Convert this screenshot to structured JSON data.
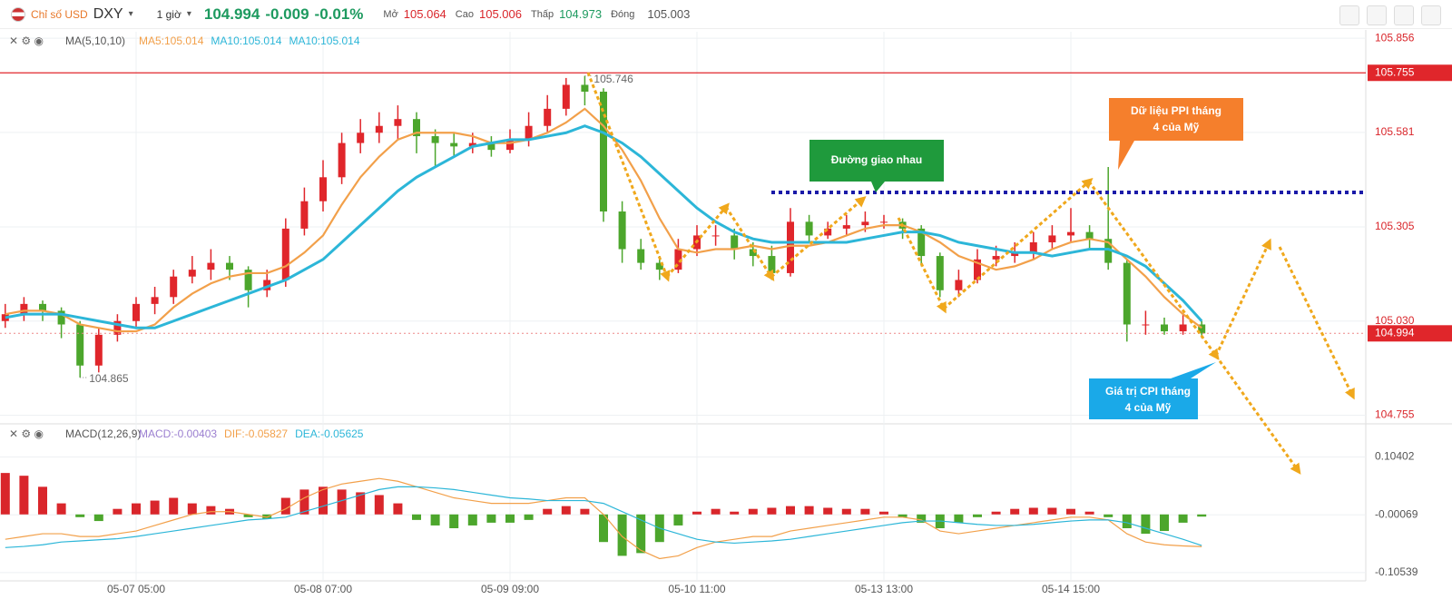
{
  "header": {
    "name": "Chỉ số USD",
    "symbol": "DXY",
    "interval": "1 giờ",
    "price": "104.994",
    "change": "-0.009",
    "change_pct": "-0.01%",
    "open_label": "Mở",
    "open": "105.064",
    "high_label": "Cao",
    "high": "105.006",
    "low_label": "Thấp",
    "low": "104.973",
    "close_label": "Đóng",
    "close": "105.003"
  },
  "chart_data": [
    {
      "type": "candlestick",
      "legend_title": "MA(5,10,10)",
      "legend": [
        "MA5:105.014",
        "MA10:105.014",
        "MA10:105.014"
      ],
      "categories": [
        null,
        null,
        null,
        null,
        null,
        null,
        null,
        "05-07 05:00",
        null,
        null,
        null,
        null,
        null,
        null,
        null,
        null,
        null,
        "05-08 07:00",
        null,
        null,
        null,
        null,
        null,
        null,
        null,
        null,
        null,
        "05-09 09:00",
        null,
        null,
        null,
        null,
        null,
        null,
        null,
        null,
        null,
        "05-10 11:00",
        null,
        null,
        null,
        null,
        null,
        null,
        null,
        null,
        null,
        "05-13 13:00",
        null,
        null,
        null,
        null,
        null,
        null,
        null,
        null,
        null,
        "05-14 15:00",
        null,
        null,
        null,
        null,
        null,
        null,
        null
      ],
      "open": [
        105.03,
        105.05,
        105.08,
        105.06,
        105.02,
        104.9,
        104.99,
        105.03,
        105.08,
        105.1,
        105.16,
        105.18,
        105.2,
        105.18,
        105.12,
        105.15,
        105.3,
        105.38,
        105.45,
        105.55,
        105.58,
        105.6,
        105.62,
        105.57,
        105.55,
        105.54,
        105.55,
        105.53,
        105.56,
        105.6,
        105.65,
        105.72,
        105.7,
        105.35,
        105.24,
        105.2,
        105.18,
        105.24,
        105.28,
        105.28,
        105.24,
        105.22,
        105.17,
        105.32,
        105.28,
        105.3,
        105.31,
        105.32,
        105.32,
        105.3,
        105.22,
        105.12,
        105.15,
        105.21,
        105.22,
        105.23,
        105.26,
        105.28,
        105.29,
        105.27,
        105.2,
        105.02,
        105.02,
        105.0,
        105.02
      ],
      "high": [
        105.08,
        105.1,
        105.09,
        105.07,
        105.03,
        105.01,
        105.05,
        105.1,
        105.13,
        105.18,
        105.22,
        105.24,
        105.22,
        105.19,
        105.18,
        105.33,
        105.42,
        105.5,
        105.58,
        105.62,
        105.64,
        105.66,
        105.64,
        105.59,
        105.58,
        105.58,
        105.57,
        105.59,
        105.64,
        105.69,
        105.74,
        105.746,
        105.71,
        105.38,
        105.27,
        105.22,
        105.27,
        105.31,
        105.31,
        105.3,
        105.26,
        105.25,
        105.36,
        105.34,
        105.32,
        105.34,
        105.35,
        105.34,
        105.33,
        105.31,
        105.23,
        105.18,
        105.24,
        105.25,
        105.26,
        105.29,
        105.31,
        105.36,
        105.31,
        105.48,
        105.21,
        105.06,
        105.04,
        105.05,
        105.03
      ],
      "low": [
        105.01,
        105.03,
        105.03,
        104.98,
        104.865,
        104.88,
        104.97,
        105.01,
        105.05,
        105.08,
        105.14,
        105.15,
        105.15,
        105.07,
        105.1,
        105.13,
        105.28,
        105.35,
        105.43,
        105.52,
        105.55,
        105.56,
        105.52,
        105.48,
        105.51,
        105.52,
        105.51,
        105.52,
        105.54,
        105.58,
        105.63,
        105.66,
        105.32,
        105.2,
        105.18,
        105.15,
        105.17,
        105.22,
        105.25,
        105.21,
        105.19,
        105.15,
        105.16,
        105.26,
        105.27,
        105.28,
        105.29,
        105.3,
        105.27,
        105.19,
        105.1,
        105.1,
        105.14,
        105.19,
        105.2,
        105.21,
        105.24,
        105.26,
        105.24,
        105.18,
        104.97,
        104.99,
        104.99,
        104.99,
        104.98
      ],
      "close": [
        105.05,
        105.08,
        105.06,
        105.02,
        104.9,
        104.99,
        105.03,
        105.08,
        105.1,
        105.16,
        105.18,
        105.2,
        105.18,
        105.12,
        105.15,
        105.3,
        105.38,
        105.45,
        105.55,
        105.58,
        105.6,
        105.62,
        105.57,
        105.55,
        105.54,
        105.55,
        105.53,
        105.56,
        105.6,
        105.65,
        105.72,
        105.7,
        105.35,
        105.24,
        105.2,
        105.18,
        105.24,
        105.28,
        105.28,
        105.24,
        105.22,
        105.17,
        105.32,
        105.28,
        105.3,
        105.31,
        105.32,
        105.32,
        105.3,
        105.22,
        105.12,
        105.15,
        105.21,
        105.22,
        105.23,
        105.26,
        105.28,
        105.29,
        105.27,
        105.2,
        105.02,
        105.02,
        105.0,
        105.02,
        104.994
      ],
      "up_color": "#e0262b",
      "down_color": "#4ca62c",
      "series": [
        {
          "name": "MA5",
          "color": "#f2a04a",
          "values": [
            105.05,
            105.06,
            105.06,
            105.05,
            105.02,
            105.01,
            105.0,
            105.0,
            105.02,
            105.07,
            105.11,
            105.14,
            105.16,
            105.17,
            105.17,
            105.19,
            105.23,
            105.28,
            105.37,
            105.45,
            105.51,
            105.56,
            105.58,
            105.58,
            105.58,
            105.57,
            105.55,
            105.55,
            105.56,
            105.58,
            105.61,
            105.65,
            105.6,
            105.53,
            105.44,
            105.33,
            105.24,
            105.23,
            105.24,
            105.24,
            105.25,
            105.24,
            105.25,
            105.25,
            105.26,
            105.28,
            105.3,
            105.31,
            105.31,
            105.29,
            105.26,
            105.22,
            105.2,
            105.18,
            105.19,
            105.21,
            105.24,
            105.26,
            105.27,
            105.26,
            105.21,
            105.16,
            105.1,
            105.05,
            105.01
          ]
        },
        {
          "name": "MA10",
          "color": "#2cb6d8",
          "values": [
            105.04,
            105.05,
            105.05,
            105.05,
            105.04,
            105.03,
            105.02,
            105.01,
            105.01,
            105.03,
            105.05,
            105.07,
            105.09,
            105.11,
            105.13,
            105.15,
            105.18,
            105.21,
            105.26,
            105.31,
            105.36,
            105.41,
            105.45,
            105.48,
            105.51,
            105.54,
            105.55,
            105.56,
            105.56,
            105.57,
            105.58,
            105.6,
            105.58,
            105.55,
            105.51,
            105.46,
            105.41,
            105.36,
            105.32,
            105.29,
            105.27,
            105.26,
            105.26,
            105.26,
            105.26,
            105.26,
            105.27,
            105.28,
            105.29,
            105.29,
            105.28,
            105.26,
            105.25,
            105.24,
            105.23,
            105.23,
            105.22,
            105.23,
            105.24,
            105.24,
            105.22,
            105.19,
            105.14,
            105.09,
            105.03
          ]
        }
      ],
      "ylim": [
        104.735,
        105.875
      ],
      "yticks": [
        105.856,
        105.581,
        105.305,
        {
          "value": 105.03,
          "label": "105.030"
        },
        104.755
      ],
      "grid": true,
      "max_label": 105.746,
      "min_label": 104.865,
      "hline": {
        "value": 105.755,
        "color": "#e0262b"
      },
      "last_price": 104.994,
      "annotations": [
        "Đường giao nhau",
        [
          "Dữ liệu PPI tháng",
          "4 của Mỹ"
        ],
        [
          "Giá trị CPI tháng",
          "4 của Mỹ"
        ]
      ]
    },
    {
      "type": "macd",
      "legend_title": "MACD(12,26,9)",
      "legend": [
        "MACD:-0.00403",
        "DIF:-0.05827",
        "DEA:-0.05625"
      ],
      "values": [
        0.075,
        0.07,
        0.05,
        0.02,
        -0.005,
        -0.012,
        0.01,
        0.02,
        0.025,
        0.03,
        0.02,
        0.015,
        0.01,
        -0.005,
        -0.008,
        0.03,
        0.045,
        0.05,
        0.045,
        0.04,
        0.035,
        0.02,
        -0.01,
        -0.02,
        -0.025,
        -0.02,
        -0.015,
        -0.015,
        -0.01,
        0.01,
        0.015,
        0.01,
        -0.05,
        -0.075,
        -0.07,
        -0.05,
        -0.02,
        0.005,
        0.01,
        0.005,
        0.01,
        0.012,
        0.015,
        0.015,
        0.012,
        0.01,
        0.01,
        0.005,
        -0.005,
        -0.015,
        -0.025,
        -0.015,
        -0.005,
        0.005,
        0.01,
        0.012,
        0.012,
        0.01,
        0.005,
        -0.005,
        -0.025,
        -0.035,
        -0.03,
        -0.015,
        -0.004
      ],
      "up_color": "#d9262b",
      "down_color": "#4ca62c",
      "series": [
        {
          "name": "DIF",
          "color": "#f2a04a",
          "values": [
            -0.045,
            -0.04,
            -0.035,
            -0.035,
            -0.04,
            -0.04,
            -0.035,
            -0.03,
            -0.02,
            -0.01,
            0.0,
            0.005,
            0.005,
            0.0,
            -0.005,
            0.01,
            0.03,
            0.045,
            0.055,
            0.06,
            0.065,
            0.06,
            0.05,
            0.04,
            0.03,
            0.025,
            0.02,
            0.02,
            0.02,
            0.025,
            0.03,
            0.03,
            0.0,
            -0.04,
            -0.065,
            -0.08,
            -0.075,
            -0.06,
            -0.05,
            -0.045,
            -0.04,
            -0.04,
            -0.03,
            -0.025,
            -0.02,
            -0.015,
            -0.01,
            -0.005,
            -0.005,
            -0.01,
            -0.03,
            -0.035,
            -0.03,
            -0.025,
            -0.02,
            -0.015,
            -0.01,
            -0.005,
            -0.005,
            -0.01,
            -0.035,
            -0.05,
            -0.055,
            -0.057,
            -0.05827
          ]
        },
        {
          "name": "DEA",
          "color": "#2cb6d8",
          "values": [
            -0.06,
            -0.058,
            -0.055,
            -0.05,
            -0.048,
            -0.046,
            -0.044,
            -0.04,
            -0.035,
            -0.03,
            -0.025,
            -0.02,
            -0.015,
            -0.01,
            -0.008,
            -0.005,
            0.005,
            0.015,
            0.025,
            0.035,
            0.045,
            0.05,
            0.05,
            0.048,
            0.045,
            0.04,
            0.035,
            0.03,
            0.028,
            0.025,
            0.025,
            0.025,
            0.02,
            0.005,
            -0.01,
            -0.025,
            -0.035,
            -0.045,
            -0.05,
            -0.052,
            -0.05,
            -0.048,
            -0.045,
            -0.04,
            -0.035,
            -0.03,
            -0.025,
            -0.02,
            -0.015,
            -0.012,
            -0.012,
            -0.015,
            -0.018,
            -0.02,
            -0.02,
            -0.018,
            -0.015,
            -0.012,
            -0.01,
            -0.01,
            -0.015,
            -0.025,
            -0.035,
            -0.045,
            -0.05625
          ]
        }
      ],
      "ylim": [
        -0.1203,
        0.159
      ],
      "yticks": [
        0.10402,
        -0.00069,
        -0.10539
      ]
    }
  ]
}
